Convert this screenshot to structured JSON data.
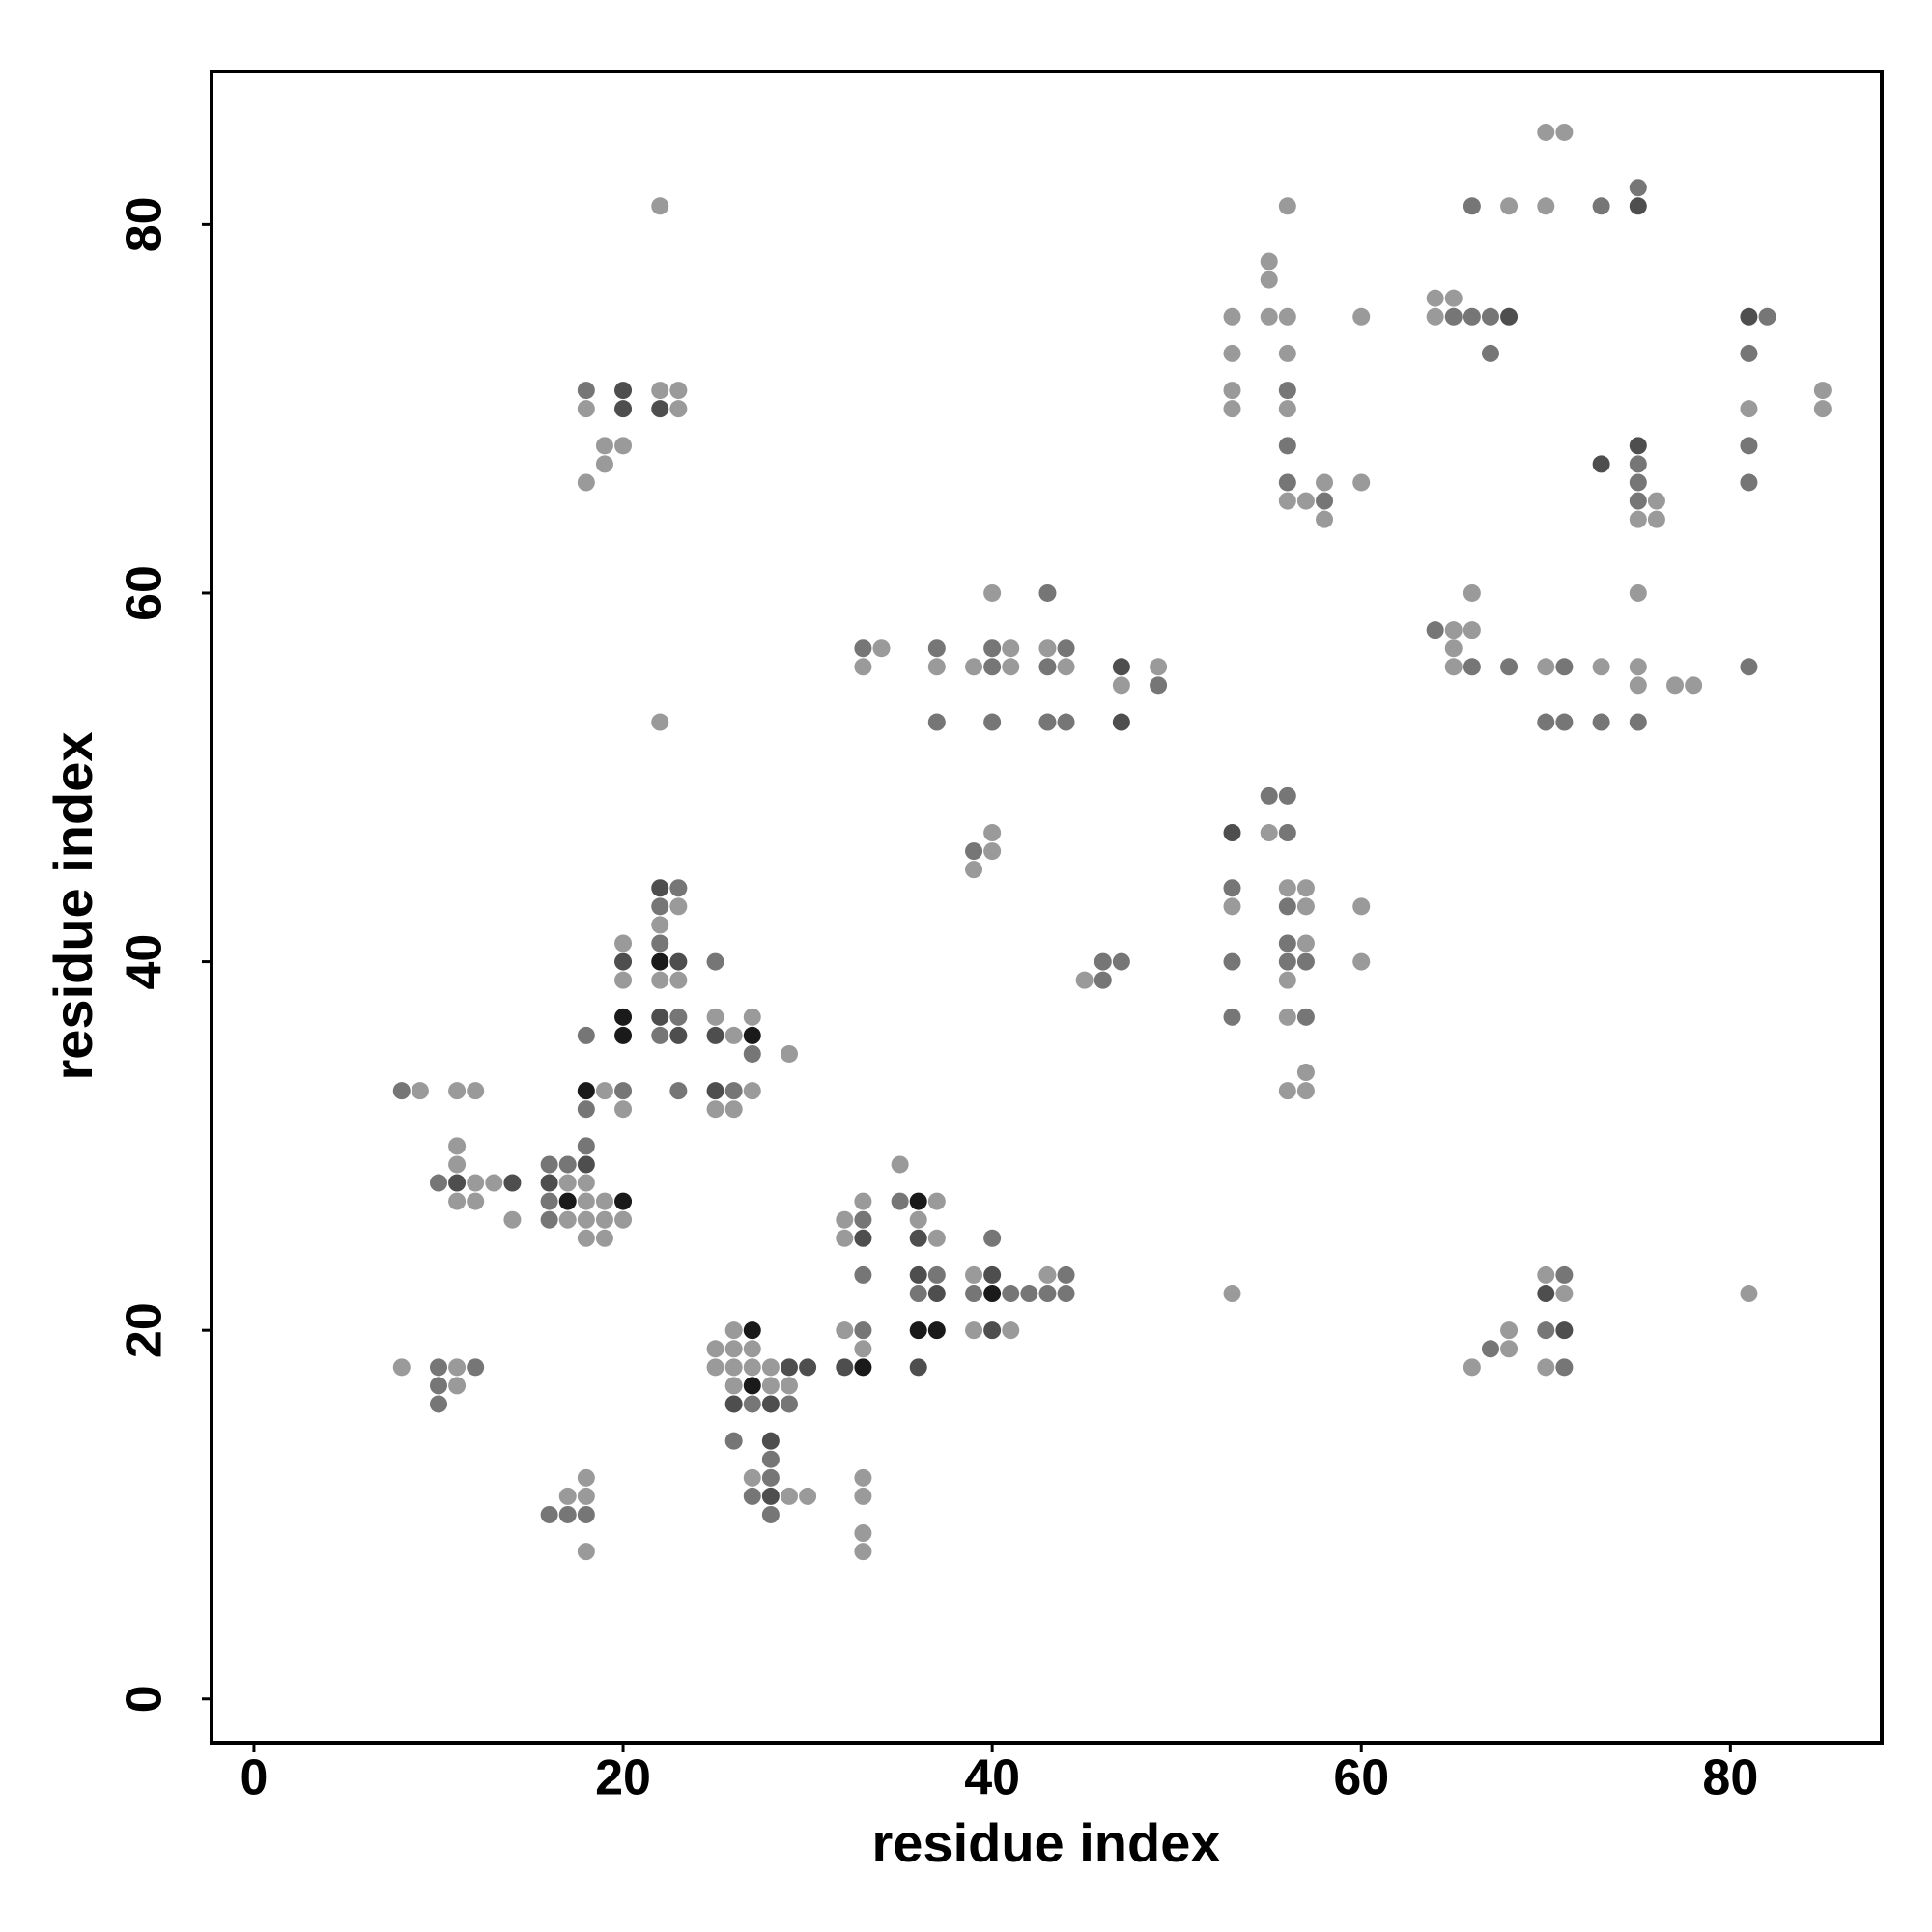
{
  "chart_data": {
    "type": "scatter",
    "xlabel": "residue index",
    "ylabel": "residue index",
    "xlim": [
      -2.3,
      88.2
    ],
    "ylim": [
      -2.37,
      88.3
    ],
    "xticks": [
      0,
      20,
      40,
      60,
      80
    ],
    "yticks": [
      0,
      20,
      40,
      60,
      80
    ],
    "series": [
      {
        "color": "#9a9a9a",
        "x": [
          8,
          9,
          11,
          11,
          11,
          11,
          11,
          11,
          12,
          12,
          12,
          13,
          14,
          17,
          17,
          17,
          18,
          18,
          18,
          18,
          18,
          18,
          18,
          18,
          18,
          19,
          19,
          19,
          19,
          19,
          19,
          20,
          20,
          20,
          20,
          20,
          22,
          22,
          22,
          22,
          22,
          23,
          23,
          23,
          23,
          25,
          25,
          25,
          25,
          26,
          26,
          26,
          26,
          26,
          26,
          27,
          27,
          27,
          27,
          27,
          28,
          28,
          29,
          29,
          29,
          30,
          32,
          32,
          32,
          33,
          33,
          33,
          33,
          33,
          33,
          33,
          34,
          35,
          36,
          37,
          37,
          37,
          39,
          39,
          39,
          39,
          40,
          40,
          40,
          41,
          41,
          41,
          43,
          43,
          44,
          45,
          47,
          49,
          53,
          53,
          53,
          53,
          53,
          53,
          55,
          55,
          55,
          55,
          56,
          56,
          56,
          56,
          56,
          56,
          56,
          56,
          56,
          57,
          57,
          57,
          57,
          57,
          57,
          58,
          58,
          60,
          60,
          60,
          60,
          64,
          64,
          65,
          65,
          65,
          65,
          66,
          66,
          66,
          68,
          68,
          68,
          70,
          70,
          70,
          70,
          70,
          71,
          71,
          73,
          75,
          75,
          75,
          75,
          76,
          76,
          77,
          78,
          81,
          81,
          85,
          85
        ],
        "y": [
          18,
          33,
          33,
          30,
          29,
          27,
          18,
          17,
          33,
          28,
          27,
          28,
          26,
          28,
          26,
          11,
          70,
          66,
          28,
          27,
          26,
          25,
          12,
          11,
          8,
          68,
          67,
          33,
          27,
          26,
          25,
          68,
          41,
          39,
          32,
          26,
          81,
          71,
          53,
          42,
          39,
          71,
          70,
          43,
          39,
          37,
          32,
          19,
          18,
          36,
          32,
          20,
          19,
          18,
          17,
          37,
          33,
          19,
          18,
          12,
          18,
          17,
          35,
          17,
          11,
          11,
          26,
          25,
          20,
          56,
          27,
          19,
          12,
          11,
          9,
          8,
          57,
          29,
          26,
          56,
          27,
          25,
          56,
          45,
          23,
          20,
          60,
          47,
          46,
          57,
          56,
          20,
          57,
          23,
          56,
          39,
          55,
          56,
          75,
          73,
          71,
          70,
          43,
          22,
          78,
          77,
          75,
          47,
          81,
          75,
          73,
          70,
          65,
          44,
          39,
          37,
          33,
          65,
          44,
          43,
          41,
          34,
          33,
          66,
          64,
          75,
          66,
          43,
          40,
          76,
          75,
          76,
          58,
          57,
          56,
          60,
          58,
          18,
          81,
          20,
          19,
          85,
          81,
          56,
          23,
          18,
          85,
          22,
          56,
          64,
          60,
          56,
          55,
          65,
          64,
          55,
          55,
          70,
          22,
          71,
          70
        ]
      },
      {
        "color": "#767676",
        "x": [
          8,
          10,
          10,
          10,
          10,
          12,
          16,
          16,
          16,
          16,
          17,
          17,
          18,
          18,
          18,
          18,
          18,
          20,
          22,
          22,
          22,
          23,
          23,
          23,
          25,
          26,
          26,
          27,
          27,
          27,
          28,
          28,
          28,
          29,
          33,
          33,
          33,
          33,
          35,
          36,
          37,
          37,
          37,
          39,
          39,
          40,
          40,
          40,
          40,
          41,
          42,
          43,
          43,
          43,
          43,
          44,
          44,
          44,
          44,
          46,
          46,
          47,
          49,
          53,
          53,
          53,
          55,
          56,
          56,
          56,
          56,
          56,
          56,
          56,
          56,
          57,
          57,
          58,
          64,
          65,
          66,
          66,
          66,
          67,
          67,
          67,
          68,
          70,
          70,
          71,
          71,
          71,
          71,
          73,
          73,
          75,
          75,
          75,
          75,
          75,
          81,
          81,
          81,
          81,
          82
        ],
        "y": [
          33,
          28,
          18,
          17,
          16,
          18,
          29,
          27,
          26,
          10,
          29,
          10,
          71,
          36,
          32,
          30,
          10,
          33,
          43,
          41,
          36,
          44,
          37,
          33,
          40,
          33,
          14,
          35,
          16,
          11,
          13,
          12,
          10,
          16,
          57,
          26,
          23,
          20,
          27,
          22,
          57,
          53,
          23,
          46,
          22,
          57,
          56,
          53,
          25,
          22,
          22,
          60,
          56,
          53,
          22,
          57,
          53,
          23,
          22,
          40,
          39,
          40,
          55,
          44,
          40,
          37,
          49,
          71,
          68,
          66,
          49,
          47,
          43,
          41,
          40,
          40,
          37,
          65,
          58,
          75,
          81,
          75,
          56,
          75,
          73,
          19,
          56,
          53,
          20,
          56,
          53,
          23,
          18,
          81,
          53,
          82,
          67,
          66,
          65,
          53,
          73,
          68,
          66,
          56,
          75
        ]
      },
      {
        "color": "#4e4e4e",
        "x": [
          11,
          14,
          16,
          18,
          20,
          20,
          20,
          22,
          22,
          22,
          23,
          23,
          25,
          25,
          26,
          28,
          28,
          28,
          29,
          30,
          32,
          33,
          36,
          36,
          36,
          37,
          40,
          40,
          47,
          47,
          53,
          68,
          70,
          71,
          73,
          75,
          75,
          81
        ],
        "y": [
          28,
          28,
          28,
          29,
          71,
          70,
          40,
          70,
          44,
          37,
          40,
          36,
          36,
          33,
          16,
          16,
          14,
          11,
          18,
          18,
          18,
          25,
          25,
          23,
          18,
          22,
          23,
          20,
          56,
          53,
          47,
          75,
          22,
          20,
          67,
          81,
          68,
          75
        ]
      },
      {
        "color": "#1a1a1a",
        "x": [
          18,
          17,
          20,
          20,
          20,
          22,
          27,
          27,
          27,
          33,
          36,
          36,
          37,
          40
        ],
        "y": [
          33,
          27,
          37,
          36,
          27,
          40,
          36,
          20,
          17,
          18,
          27,
          20,
          20,
          22
        ]
      }
    ]
  }
}
